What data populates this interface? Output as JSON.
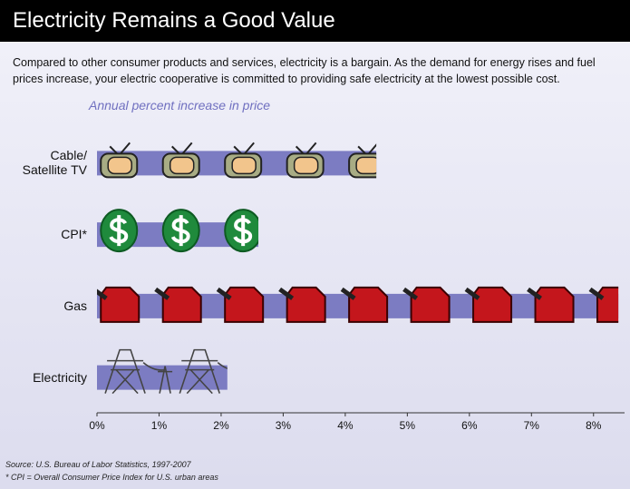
{
  "chart_data": {
    "type": "bar",
    "title": "Electricity Remains a Good Value",
    "description": "Compared to other consumer products and services, electricity is a bargain. As the demand for energy rises and fuel prices increase, your electric cooperative is committed to providing safe electricity at the lowest possible cost.",
    "subtitle": "Annual percent increase in price",
    "categories": [
      "Cable/ Satellite TV",
      "CPI*",
      "Gas",
      "Electricity"
    ],
    "values": [
      4.5,
      2.6,
      8.4,
      2.1
    ],
    "color": "#7c7cc2",
    "xlim": [
      0,
      8.5
    ],
    "xticks": [
      {
        "value": 0,
        "label": "0%"
      },
      {
        "value": 1,
        "label": "1%"
      },
      {
        "value": 2,
        "label": "2%"
      },
      {
        "value": 3,
        "label": "3%"
      },
      {
        "value": 4,
        "label": "4%"
      },
      {
        "value": 5,
        "label": "5%"
      },
      {
        "value": 6,
        "label": "6%"
      },
      {
        "value": 7,
        "label": "7%"
      },
      {
        "value": 8,
        "label": "8%"
      }
    ],
    "source": "Source: U.S. Bureau of Labor Statistics, 1997-2007",
    "note": "* CPI = Overall Consumer Price Index for U.S. urban areas"
  }
}
